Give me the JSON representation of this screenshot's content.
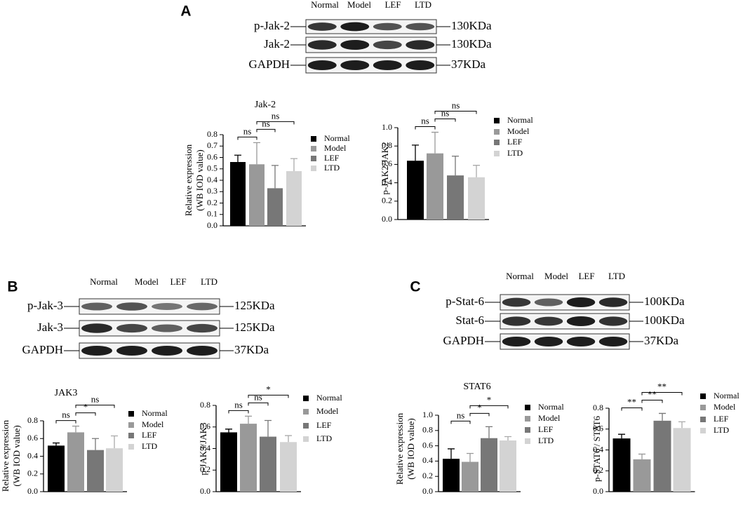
{
  "panels": [
    {
      "letter": "A",
      "blot": {
        "lanes": [
          "Normal",
          "Model",
          "LEF",
          "LTD"
        ],
        "rows": [
          {
            "label": "p-Jak-2",
            "size": "130KDa"
          },
          {
            "label": "Jak-2",
            "size": "130KDa"
          },
          {
            "label": "GAPDH",
            "size": "37KDa"
          }
        ]
      }
    },
    {
      "letter": "B",
      "blot": {
        "lanes": [
          "Normal",
          "Model",
          "LEF",
          "LTD"
        ],
        "rows": [
          {
            "label": "p-Jak-3",
            "size": "125KDa"
          },
          {
            "label": "Jak-3",
            "size": "125KDa"
          },
          {
            "label": "GAPDH",
            "size": "37KDa"
          }
        ]
      }
    },
    {
      "letter": "C",
      "blot": {
        "lanes": [
          "Normal",
          "Model",
          "LEF",
          "LTD"
        ],
        "rows": [
          {
            "label": "p-Stat-6",
            "size": "100KDa"
          },
          {
            "label": "Stat-6",
            "size": "100KDa"
          },
          {
            "label": "GAPDH",
            "size": "37KDa"
          }
        ]
      }
    }
  ],
  "chart_data": [
    {
      "type": "bar",
      "title": "Jak-2",
      "ylabel": [
        "Relative expression",
        "(WB IOD value)"
      ],
      "categories": [
        "Normal",
        "Model",
        "LEF",
        "LTD"
      ],
      "colors": [
        "#000000",
        "#999999",
        "#777777",
        "#d3d3d3"
      ],
      "values": [
        0.56,
        0.54,
        0.33,
        0.48
      ],
      "errors": [
        0.06,
        0.19,
        0.2,
        0.11
      ],
      "ylim": [
        0,
        0.8
      ],
      "yticks": [
        {
          "value": 0,
          "label": "0.0"
        },
        0.1,
        0.2,
        0.3,
        0.4,
        0.5,
        0.6,
        0.7,
        0.8
      ],
      "comparisons": [
        {
          "label": "ns",
          "groups": [
            0,
            1
          ]
        },
        {
          "label": "ns",
          "groups": [
            1,
            2
          ]
        },
        {
          "label": "ns",
          "groups": [
            1,
            3
          ]
        }
      ]
    },
    {
      "type": "bar",
      "ylabel": [
        "p-JAK2/JAK2"
      ],
      "categories": [
        "Normal",
        "Model",
        "LEF",
        "LTD"
      ],
      "colors": [
        "#000000",
        "#999999",
        "#777777",
        "#d3d3d3"
      ],
      "values": [
        0.64,
        0.72,
        0.48,
        0.46
      ],
      "errors": [
        0.17,
        0.23,
        0.21,
        0.13
      ],
      "ylim": [
        0,
        1.0
      ],
      "yticks": [
        {
          "value": 0,
          "label": "0.0"
        },
        0.2,
        0.4,
        0.6,
        0.8,
        {
          "value": 1.0,
          "label": "1.0"
        }
      ],
      "comparisons": [
        {
          "label": "ns",
          "groups": [
            0,
            1
          ]
        },
        {
          "label": "ns",
          "groups": [
            1,
            2
          ]
        },
        {
          "label": "ns",
          "groups": [
            1,
            3
          ]
        }
      ]
    },
    {
      "type": "bar",
      "title": "JAK3",
      "ylabel": [
        "Relative expression",
        "(WB IOD value)"
      ],
      "categories": [
        "Normal",
        "Model",
        "LEF",
        "LTD"
      ],
      "colors": [
        "#000000",
        "#999999",
        "#777777",
        "#d3d3d3"
      ],
      "values": [
        0.52,
        0.67,
        0.47,
        0.49
      ],
      "errors": [
        0.03,
        0.07,
        0.13,
        0.14
      ],
      "ylim": [
        0,
        0.8
      ],
      "yticks": [
        {
          "value": 0,
          "label": "0.0"
        },
        0.2,
        0.4,
        0.6,
        0.8
      ],
      "comparisons": [
        {
          "label": "ns",
          "groups": [
            0,
            1
          ]
        },
        {
          "label": "*",
          "groups": [
            1,
            2
          ]
        },
        {
          "label": "ns",
          "groups": [
            1,
            3
          ]
        }
      ]
    },
    {
      "type": "bar",
      "ylabel": [
        "p-JAK3/JAK3"
      ],
      "categories": [
        "Normal",
        "Model",
        "LEF",
        "LTD"
      ],
      "colors": [
        "#000000",
        "#999999",
        "#777777",
        "#d3d3d3"
      ],
      "values": [
        0.55,
        0.63,
        0.51,
        0.46
      ],
      "errors": [
        0.03,
        0.07,
        0.15,
        0.06
      ],
      "ylim": [
        0,
        0.8
      ],
      "yticks": [
        {
          "value": 0,
          "label": "0.0"
        },
        0.2,
        0.4,
        0.6,
        0.8
      ],
      "comparisons": [
        {
          "label": "ns",
          "groups": [
            0,
            1
          ]
        },
        {
          "label": "ns",
          "groups": [
            1,
            2
          ]
        },
        {
          "label": "*",
          "groups": [
            1,
            3
          ]
        }
      ]
    },
    {
      "type": "bar",
      "title": "STAT6",
      "ylabel": [
        "Relative expression",
        "(WB IOD value)"
      ],
      "categories": [
        "Normal",
        "Model",
        "LEF",
        "LTD"
      ],
      "colors": [
        "#000000",
        "#999999",
        "#777777",
        "#d3d3d3"
      ],
      "values": [
        0.43,
        0.39,
        0.7,
        0.67
      ],
      "errors": [
        0.13,
        0.11,
        0.15,
        0.05
      ],
      "ylim": [
        0,
        1.0
      ],
      "yticks": [
        {
          "value": 0,
          "label": "0.0"
        },
        0.2,
        0.4,
        0.6,
        0.8,
        {
          "value": 1.0,
          "label": "1.0"
        }
      ],
      "comparisons": [
        {
          "label": "ns",
          "groups": [
            0,
            1
          ]
        },
        {
          "label": "*",
          "groups": [
            1,
            2
          ]
        },
        {
          "label": "*",
          "groups": [
            1,
            3
          ]
        }
      ]
    },
    {
      "type": "bar",
      "ylabel": [
        "p-STAT6 / STAT6"
      ],
      "categories": [
        "Normal",
        "Model",
        "LEF",
        "LTD"
      ],
      "colors": [
        "#000000",
        "#999999",
        "#777777",
        "#d3d3d3"
      ],
      "values": [
        0.51,
        0.31,
        0.68,
        0.61
      ],
      "errors": [
        0.04,
        0.05,
        0.07,
        0.06
      ],
      "ylim": [
        0,
        0.8
      ],
      "yticks": [
        {
          "value": 0,
          "label": "0.0"
        },
        0.2,
        0.4,
        0.6,
        0.8
      ],
      "comparisons": [
        {
          "label": "**",
          "groups": [
            0,
            1
          ]
        },
        {
          "label": "**",
          "groups": [
            1,
            2
          ]
        },
        {
          "label": "**",
          "groups": [
            1,
            3
          ]
        }
      ]
    }
  ]
}
